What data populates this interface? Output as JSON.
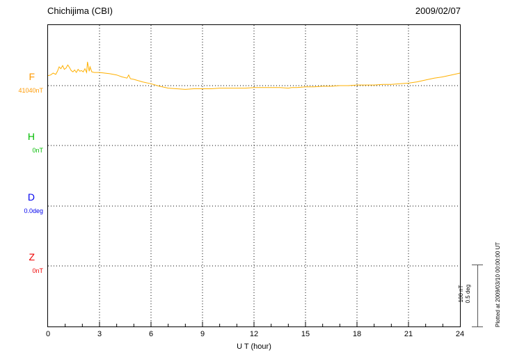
{
  "header": {
    "station_title": "Chichijima (CBI)",
    "date": "2009/02/07"
  },
  "x_axis": {
    "label": "U T (hour)",
    "ticks": [
      0,
      3,
      6,
      9,
      12,
      15,
      18,
      21,
      24
    ],
    "min": 0,
    "max": 24
  },
  "channels": [
    {
      "id": "F",
      "label": "F",
      "value_label": "41040nT",
      "color": "#ff9900"
    },
    {
      "id": "H",
      "label": "H",
      "value_label": "0nT",
      "color": "#00bb00"
    },
    {
      "id": "D",
      "label": "D",
      "value_label": "0.0deg",
      "color": "#0000ee"
    },
    {
      "id": "Z",
      "label": "Z",
      "value_label": "0nT",
      "color": "#ee0000"
    }
  ],
  "scale_bar": {
    "line1": "100 nT",
    "line2": "0.5 deg"
  },
  "footer_note": "Plotted at 2009/03/10 00:00:00 UT",
  "chart_data": {
    "type": "line",
    "title": "Chichijima (CBI) magnetogram",
    "date": "2009/02/07",
    "xlabel": "U T (hour)",
    "x_range": [
      0,
      24
    ],
    "x_tick_labels": [
      0,
      3,
      6,
      9,
      12,
      15,
      18,
      21,
      24
    ],
    "grid": "dotted",
    "scale": {
      "nT_per_division": 100,
      "deg_per_division": 0.5
    },
    "baselines": [
      {
        "name": "F",
        "value": 41040,
        "units": "nT"
      },
      {
        "name": "H",
        "value": 0,
        "units": "nT"
      },
      {
        "name": "D",
        "value": 0.0,
        "units": "deg"
      },
      {
        "name": "Z",
        "value": 0,
        "units": "nT"
      }
    ],
    "series": [
      {
        "name": "F",
        "units": "nT",
        "color": "#ffb000",
        "baseline": 41040,
        "points": [
          [
            0,
            41056
          ],
          [
            0.15,
            41057
          ],
          [
            0.3,
            41060
          ],
          [
            0.45,
            41058
          ],
          [
            0.55,
            41063
          ],
          [
            0.65,
            41070
          ],
          [
            0.75,
            41067
          ],
          [
            0.85,
            41072
          ],
          [
            0.95,
            41066
          ],
          [
            1.05,
            41068
          ],
          [
            1.15,
            41073
          ],
          [
            1.25,
            41069
          ],
          [
            1.35,
            41064
          ],
          [
            1.45,
            41062
          ],
          [
            1.55,
            41065
          ],
          [
            1.65,
            41061
          ],
          [
            1.75,
            41066
          ],
          [
            1.85,
            41063
          ],
          [
            1.95,
            41064
          ],
          [
            2.05,
            41062
          ],
          [
            2.15,
            41067
          ],
          [
            2.25,
            41061
          ],
          [
            2.3,
            41078
          ],
          [
            2.4,
            41063
          ],
          [
            2.45,
            41070
          ],
          [
            2.55,
            41062
          ],
          [
            2.7,
            41061
          ],
          [
            3,
            41061
          ],
          [
            3.3,
            41060
          ],
          [
            3.6,
            41059
          ],
          [
            4,
            41057
          ],
          [
            4.3,
            41054
          ],
          [
            4.6,
            41052
          ],
          [
            4.7,
            41057
          ],
          [
            4.8,
            41051
          ],
          [
            5,
            41050
          ],
          [
            5.5,
            41046
          ],
          [
            6,
            41043
          ],
          [
            6.5,
            41039
          ],
          [
            7,
            41036
          ],
          [
            7.5,
            41035
          ],
          [
            8,
            41034
          ],
          [
            8.5,
            41035
          ],
          [
            9,
            41035
          ],
          [
            9.5,
            41035
          ],
          [
            10,
            41036
          ],
          [
            10.5,
            41036
          ],
          [
            11,
            41036
          ],
          [
            11.5,
            41036
          ],
          [
            12,
            41037
          ],
          [
            12.5,
            41037
          ],
          [
            13,
            41037
          ],
          [
            13.5,
            41037
          ],
          [
            14,
            41036
          ],
          [
            14.2,
            41037
          ],
          [
            14.5,
            41037
          ],
          [
            15,
            41038
          ],
          [
            15.5,
            41038
          ],
          [
            16,
            41039
          ],
          [
            16.5,
            41039
          ],
          [
            17,
            41040
          ],
          [
            17.5,
            41040
          ],
          [
            18,
            41041
          ],
          [
            18.5,
            41041
          ],
          [
            19,
            41041
          ],
          [
            19.5,
            41042
          ],
          [
            20,
            41042
          ],
          [
            20.5,
            41043
          ],
          [
            21,
            41044
          ],
          [
            21.5,
            41046
          ],
          [
            22,
            41049
          ],
          [
            22.5,
            41052
          ],
          [
            23,
            41054
          ],
          [
            23.5,
            41057
          ],
          [
            24,
            41060
          ]
        ]
      },
      {
        "name": "H",
        "units": "nT",
        "baseline": 0,
        "points": []
      },
      {
        "name": "D",
        "units": "deg",
        "baseline": 0,
        "points": []
      },
      {
        "name": "Z",
        "units": "nT",
        "baseline": 0,
        "points": []
      }
    ]
  }
}
